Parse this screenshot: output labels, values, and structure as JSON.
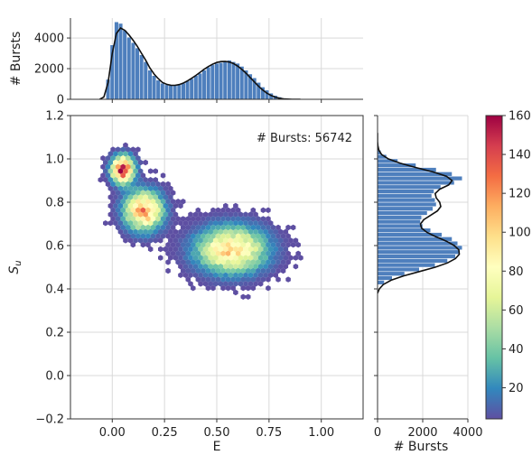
{
  "chart_data": [
    {
      "type": "heatmap",
      "panel": "joint",
      "xlabel": "E",
      "ylabel": "S_u",
      "xlim": [
        -0.2,
        1.2
      ],
      "ylim": [
        -0.2,
        1.2
      ],
      "xticks": [
        "0.00",
        "0.25",
        "0.50",
        "0.75",
        "1.00"
      ],
      "xtick_values": [
        0.0,
        0.25,
        0.5,
        0.75,
        1.0
      ],
      "yticks": [
        "−0.2",
        "0.0",
        "0.2",
        "0.4",
        "0.6",
        "0.8",
        "1.0",
        "1.2"
      ],
      "ytick_values": [
        -0.2,
        0.0,
        0.2,
        0.4,
        0.6,
        0.8,
        1.0,
        1.2
      ],
      "grid": true,
      "annotation": "# Bursts: 56742",
      "populations": [
        {
          "E": 0.05,
          "S": 0.95,
          "peak": 160,
          "sigma_E": 0.035,
          "sigma_S": 0.04
        },
        {
          "E": 0.15,
          "S": 0.76,
          "peak": 115,
          "sigma_E": 0.06,
          "sigma_S": 0.06
        },
        {
          "E": 0.57,
          "S": 0.58,
          "peak": 100,
          "sigma_E": 0.11,
          "sigma_S": 0.07
        }
      ]
    },
    {
      "type": "bar",
      "panel": "top-marginal",
      "ylabel": "# Bursts",
      "yticks": [
        "0",
        "2000",
        "4000"
      ],
      "ytick_values": [
        0,
        2000,
        4000
      ],
      "ylim": [
        0,
        5300
      ],
      "x": [
        -0.02,
        0.0,
        0.02,
        0.04,
        0.06,
        0.08,
        0.1,
        0.12,
        0.14,
        0.16,
        0.18,
        0.2,
        0.22,
        0.24,
        0.26,
        0.28,
        0.3,
        0.32,
        0.34,
        0.36,
        0.38,
        0.4,
        0.42,
        0.44,
        0.46,
        0.48,
        0.5,
        0.52,
        0.54,
        0.56,
        0.58,
        0.6,
        0.62,
        0.64,
        0.66,
        0.68,
        0.7,
        0.72,
        0.74,
        0.76,
        0.78,
        0.8,
        0.82,
        0.84,
        0.86
      ],
      "values": [
        1300,
        3550,
        5050,
        4950,
        4500,
        4050,
        3700,
        3350,
        2900,
        2450,
        1900,
        1550,
        1250,
        1050,
        950,
        900,
        900,
        950,
        1050,
        1200,
        1350,
        1550,
        1700,
        1900,
        2100,
        2250,
        2350,
        2400,
        2500,
        2550,
        2450,
        2350,
        2150,
        1900,
        1650,
        1400,
        1100,
        800,
        600,
        400,
        250,
        150,
        80,
        40,
        20
      ],
      "kde_x": [
        -0.06,
        -0.04,
        -0.02,
        0.0,
        0.02,
        0.04,
        0.06,
        0.08,
        0.1,
        0.12,
        0.14,
        0.16,
        0.18,
        0.2,
        0.22,
        0.24,
        0.26,
        0.28,
        0.3,
        0.32,
        0.34,
        0.36,
        0.38,
        0.4,
        0.42,
        0.44,
        0.46,
        0.48,
        0.5,
        0.52,
        0.54,
        0.56,
        0.58,
        0.6,
        0.62,
        0.64,
        0.66,
        0.68,
        0.7,
        0.72,
        0.74,
        0.76,
        0.78,
        0.8,
        0.82,
        0.84,
        0.86,
        0.88,
        0.9
      ],
      "kde_y": [
        0,
        150,
        1100,
        3000,
        4300,
        4650,
        4500,
        4200,
        3850,
        3450,
        3000,
        2550,
        2050,
        1650,
        1350,
        1100,
        980,
        920,
        910,
        960,
        1060,
        1200,
        1370,
        1560,
        1760,
        1960,
        2140,
        2290,
        2400,
        2460,
        2470,
        2430,
        2330,
        2170,
        1950,
        1700,
        1420,
        1130,
        850,
        600,
        400,
        250,
        140,
        70,
        30,
        10,
        0,
        0,
        0
      ]
    },
    {
      "type": "bar",
      "panel": "right-marginal",
      "xlabel": "# Bursts",
      "xticks": [
        "0",
        "2000",
        "4000"
      ],
      "xtick_values": [
        0,
        2000,
        4000
      ],
      "xlim": [
        0,
        4000
      ],
      "y": [
        0.43,
        0.45,
        0.47,
        0.49,
        0.51,
        0.53,
        0.55,
        0.57,
        0.59,
        0.61,
        0.63,
        0.65,
        0.67,
        0.69,
        0.71,
        0.73,
        0.75,
        0.77,
        0.79,
        0.81,
        0.83,
        0.85,
        0.87,
        0.89,
        0.91,
        0.93,
        0.95,
        0.97,
        0.99,
        1.01,
        1.03,
        1.05,
        1.07
      ],
      "values": [
        300,
        650,
        1200,
        1850,
        2550,
        3100,
        3450,
        3600,
        3750,
        3550,
        3300,
        2850,
        2350,
        2000,
        1900,
        1950,
        2200,
        2450,
        2600,
        2550,
        2400,
        2500,
        2800,
        3400,
        3750,
        3300,
        2600,
        1700,
        900,
        400,
        150,
        60,
        20
      ],
      "kde_y": [
        0.38,
        0.4,
        0.42,
        0.44,
        0.46,
        0.48,
        0.5,
        0.52,
        0.54,
        0.56,
        0.58,
        0.6,
        0.62,
        0.64,
        0.66,
        0.68,
        0.7,
        0.72,
        0.74,
        0.76,
        0.78,
        0.8,
        0.82,
        0.84,
        0.86,
        0.88,
        0.9,
        0.92,
        0.94,
        0.96,
        0.98,
        1.0,
        1.02,
        1.04,
        1.06,
        1.08,
        1.1,
        1.12
      ],
      "kde_x": [
        0,
        80,
        250,
        600,
        1150,
        1850,
        2550,
        3100,
        3450,
        3620,
        3600,
        3400,
        3050,
        2600,
        2200,
        1950,
        1900,
        2050,
        2350,
        2650,
        2800,
        2750,
        2600,
        2550,
        2750,
        3150,
        3300,
        3050,
        2450,
        1700,
        1000,
        480,
        180,
        60,
        15,
        0,
        0,
        0
      ]
    }
  ],
  "colorbar": {
    "ticks": [
      "20",
      "40",
      "60",
      "80",
      "100",
      "120",
      "140",
      "160"
    ],
    "tick_values": [
      20,
      40,
      60,
      80,
      100,
      120,
      140,
      160
    ],
    "min": 4,
    "max": 160
  },
  "colors": {
    "bar_fill": "#4e7fbd",
    "bar_edge": "#ffffff",
    "kde_line": "#111111",
    "grid": "#d9d9d9",
    "spine": "#333333",
    "colormap": [
      "#5e4fa2",
      "#3288bd",
      "#66c2a5",
      "#abdda4",
      "#e6f598",
      "#ffffbf",
      "#fee08b",
      "#fdae61",
      "#f46d43",
      "#d53e4f",
      "#9e0142"
    ]
  }
}
